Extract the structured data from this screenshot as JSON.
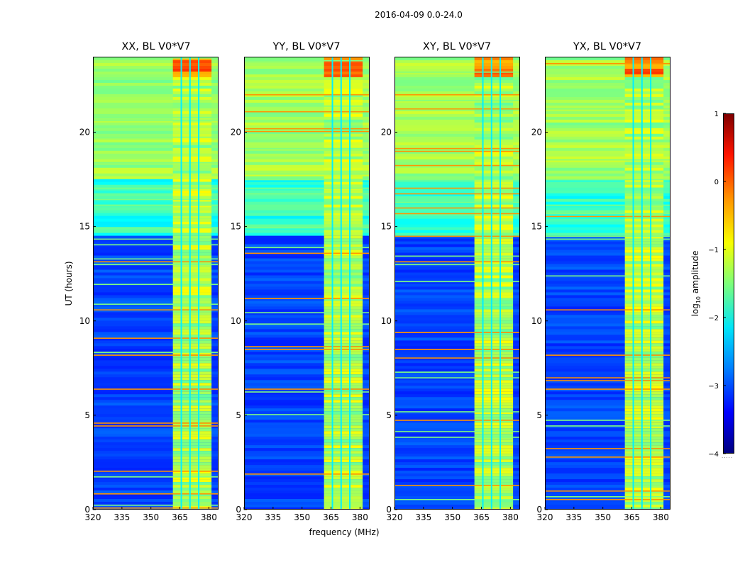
{
  "figure": {
    "suptitle": "2016-04-09 0.0-24.0",
    "xlabel": "frequency (MHz)",
    "ylabel": "UT (hours)",
    "colorbar": {
      "label_prefix": "log",
      "label_sub": "10",
      "label_suffix": " amplitude",
      "ticks": [
        "1",
        "0",
        "−1",
        "−2",
        "−3",
        "−4"
      ],
      "range": [
        -4,
        1
      ],
      "colormap": "jet"
    }
  },
  "chart_data": [
    {
      "type": "heatmap",
      "title": "XX, BL V0*V7",
      "xlabel": "frequency (MHz)",
      "ylabel": "UT (hours)",
      "xlim": [
        320,
        385
      ],
      "ylim": [
        0,
        24
      ],
      "xticks": [
        "320",
        "335",
        "350",
        "365",
        "380"
      ],
      "yticks": [
        "0",
        "5",
        "10",
        "15",
        "20"
      ],
      "bright_band_mhz": [
        361,
        381
      ],
      "zlim": [
        -4,
        1
      ]
    },
    {
      "type": "heatmap",
      "title": "YY, BL V0*V7",
      "xlabel": "frequency (MHz)",
      "ylabel": "UT (hours)",
      "xlim": [
        320,
        385
      ],
      "ylim": [
        0,
        24
      ],
      "xticks": [
        "320",
        "335",
        "350",
        "365",
        "380"
      ],
      "yticks": [
        "0",
        "5",
        "10",
        "15",
        "20"
      ],
      "bright_band_mhz": [
        361,
        381
      ],
      "zlim": [
        -4,
        1
      ]
    },
    {
      "type": "heatmap",
      "title": "XY, BL V0*V7",
      "xlabel": "frequency (MHz)",
      "ylabel": "UT (hours)",
      "xlim": [
        320,
        385
      ],
      "ylim": [
        0,
        24
      ],
      "xticks": [
        "320",
        "335",
        "350",
        "365",
        "380"
      ],
      "yticks": [
        "0",
        "5",
        "10",
        "15",
        "20"
      ],
      "bright_band_mhz": [
        361,
        381
      ],
      "zlim": [
        -4,
        1
      ]
    },
    {
      "type": "heatmap",
      "title": "YX, BL V0*V7",
      "xlabel": "frequency (MHz)",
      "ylabel": "UT (hours)",
      "xlim": [
        320,
        385
      ],
      "ylim": [
        0,
        24
      ],
      "xticks": [
        "320",
        "335",
        "350",
        "365",
        "380"
      ],
      "yticks": [
        "0",
        "5",
        "10",
        "15",
        "20"
      ],
      "bright_band_mhz": [
        361,
        381
      ],
      "zlim": [
        -4,
        1
      ]
    }
  ]
}
